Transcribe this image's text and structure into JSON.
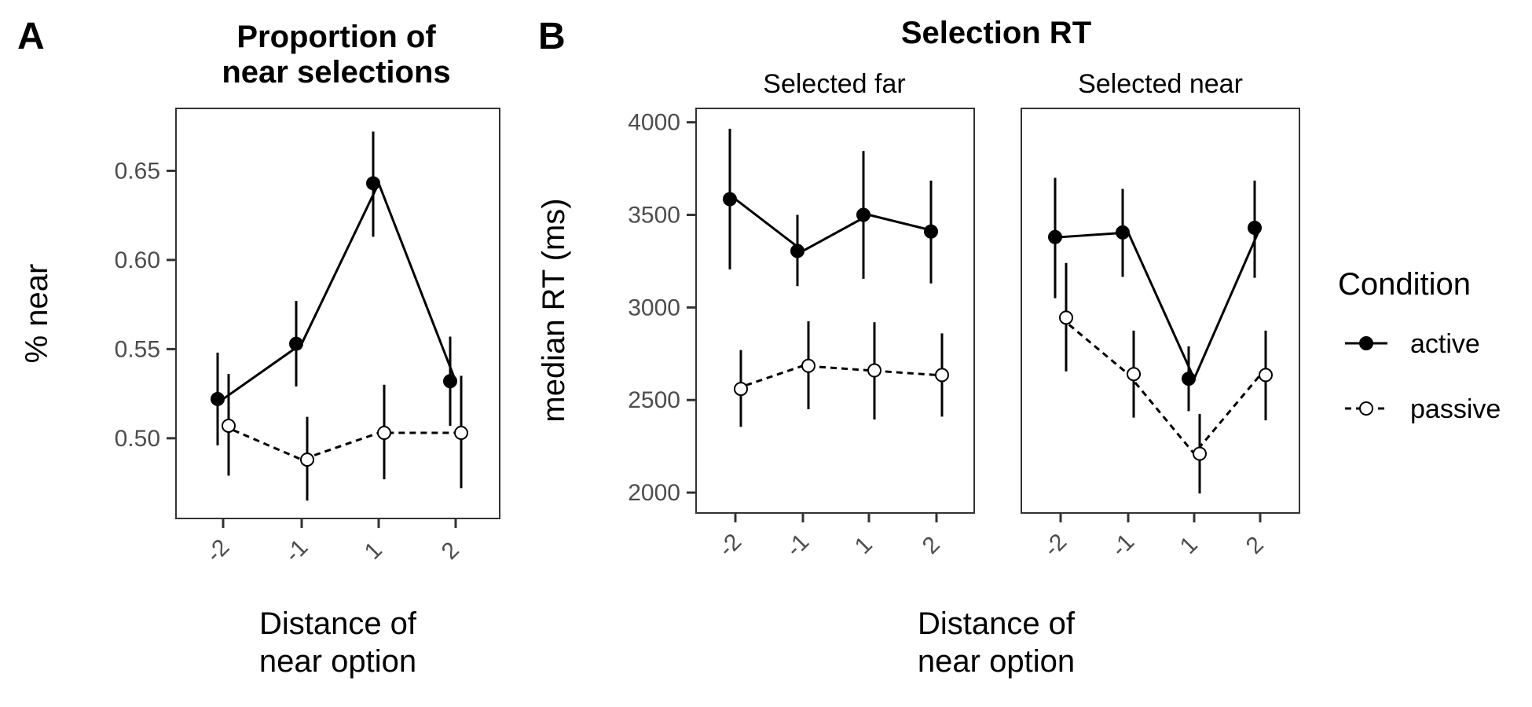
{
  "panel_letters": {
    "a": "A",
    "b": "B"
  },
  "legend": {
    "title": "Condition",
    "items": [
      {
        "label": "active",
        "line": "solid",
        "marker": "filled-circle"
      },
      {
        "label": "passive",
        "line": "dashed",
        "marker": "open-circle"
      }
    ]
  },
  "colors": {
    "line": "#000000",
    "open_fill": "#ffffff",
    "frame": "#333333",
    "tick_text": "#4d4d4d"
  },
  "chart_data": [
    {
      "id": "A",
      "type": "line",
      "title": "Proportion of\nnear selections",
      "xlabel": "Distance of\nnear option",
      "ylabel": "% near",
      "categories": [
        "-2",
        "-1",
        "1",
        "2"
      ],
      "ylim": [
        0.455,
        0.685
      ],
      "yticks": [
        0.5,
        0.55,
        0.6,
        0.65
      ],
      "ytick_labels": [
        "0.50",
        "0.55",
        "0.60",
        "0.65"
      ],
      "grid": false,
      "series": [
        {
          "name": "active",
          "values": [
            0.522,
            0.553,
            0.643,
            0.532
          ],
          "lower": [
            0.496,
            0.529,
            0.613,
            0.507
          ],
          "upper": [
            0.548,
            0.577,
            0.672,
            0.557
          ]
        },
        {
          "name": "passive",
          "values": [
            0.507,
            0.488,
            0.503,
            0.503
          ],
          "lower": [
            0.479,
            0.465,
            0.477,
            0.472
          ],
          "upper": [
            0.536,
            0.512,
            0.53,
            0.535
          ]
        }
      ]
    },
    {
      "id": "B",
      "type": "line",
      "title": "Selection RT",
      "xlabel": "Distance of\nnear option",
      "ylabel": "median RT (ms)",
      "categories": [
        "-2",
        "-1",
        "1",
        "2"
      ],
      "ylim": [
        1890,
        4075
      ],
      "yticks": [
        2000,
        2500,
        3000,
        3500,
        4000
      ],
      "ytick_labels": [
        "2000",
        "2500",
        "3000",
        "3500",
        "4000"
      ],
      "grid": false,
      "facets": [
        {
          "strip": "Selected far",
          "series": [
            {
              "name": "active",
              "values": [
                3585,
                3305,
                3500,
                3410
              ],
              "lower": [
                3205,
                3115,
                3155,
                3130
              ],
              "upper": [
                3965,
                3500,
                3845,
                3685
              ]
            },
            {
              "name": "passive",
              "values": [
                2560,
                2685,
                2660,
                2635
              ],
              "lower": [
                2355,
                2450,
                2395,
                2410
              ],
              "upper": [
                2770,
                2925,
                2920,
                2860
              ]
            }
          ]
        },
        {
          "strip": "Selected near",
          "series": [
            {
              "name": "active",
              "values": [
                3380,
                3405,
                2615,
                3430
              ],
              "lower": [
                3050,
                3165,
                2440,
                3160
              ],
              "upper": [
                3700,
                3640,
                2790,
                3685
              ]
            },
            {
              "name": "passive",
              "values": [
                2945,
                2640,
                2210,
                2635
              ],
              "lower": [
                2655,
                2405,
                1995,
                2390
              ],
              "upper": [
                3240,
                2875,
                2425,
                2875
              ]
            }
          ]
        }
      ]
    }
  ]
}
